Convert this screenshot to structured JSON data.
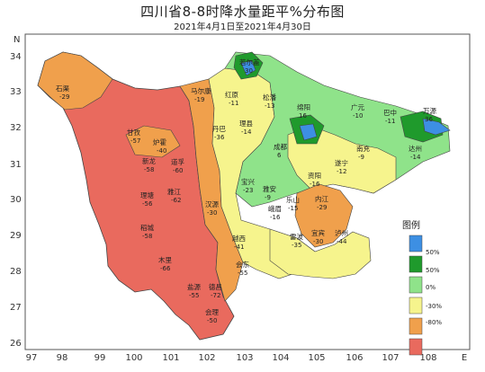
{
  "title": "四川省8-8时降水量距平%分布图",
  "subtitle": "2021年4月1日至2021年4月30日",
  "axes": {
    "x_ticks": [
      "97",
      "98",
      "99",
      "100",
      "101",
      "102",
      "103",
      "104",
      "105",
      "106",
      "107",
      "108"
    ],
    "y_ticks": [
      "34",
      "33",
      "32",
      "31",
      "30",
      "29",
      "28",
      "27",
      "26"
    ],
    "x_end_label": "E",
    "y_top_label": "N"
  },
  "legend": {
    "title": "图例",
    "items": [
      {
        "label": "50%",
        "color": "#3d8fe3"
      },
      {
        "label": "50%",
        "color": "#1f9a2c"
      },
      {
        "label": "0%",
        "color": "#8fe38a"
      },
      {
        "label": "-30%",
        "color": "#f6f48d"
      },
      {
        "label": "-80%",
        "color": "#f0a04c"
      },
      {
        "label": "",
        "color": "#e96a5e"
      }
    ]
  },
  "stations": [
    {
      "name": "石渠",
      "value": "-29"
    },
    {
      "name": "甘孜",
      "value": "-57"
    },
    {
      "name": "炉霍",
      "value": "-40"
    },
    {
      "name": "新龙",
      "value": "-58"
    },
    {
      "name": "道孚",
      "value": "-60"
    },
    {
      "name": "理塘",
      "value": "-56"
    },
    {
      "name": "雅江",
      "value": "-62"
    },
    {
      "name": "稻城",
      "value": "-58"
    },
    {
      "name": "木里",
      "value": "-66"
    },
    {
      "name": "盐源",
      "value": "-55"
    },
    {
      "name": "德昌",
      "value": "-72"
    },
    {
      "name": "会理",
      "value": "-50"
    },
    {
      "name": "会东",
      "value": "-55"
    },
    {
      "name": "越西",
      "value": "-41"
    },
    {
      "name": "雷波",
      "value": "-35"
    },
    {
      "name": "汉源",
      "value": "-30"
    },
    {
      "name": "红原",
      "value": "-11"
    },
    {
      "name": "若尔盖",
      "value": "30"
    },
    {
      "name": "松潘",
      "value": "-13"
    },
    {
      "name": "马尔康",
      "value": "-19"
    },
    {
      "name": "理县",
      "value": "-14"
    },
    {
      "name": "丹巴",
      "value": "-36"
    },
    {
      "name": "宝兴",
      "value": "-23"
    },
    {
      "name": "雅安",
      "value": "-9"
    },
    {
      "name": "峨眉",
      "value": "-16"
    },
    {
      "name": "乐山",
      "value": "-15"
    },
    {
      "name": "宜宾",
      "value": "-30"
    },
    {
      "name": "泸州",
      "value": "-44"
    },
    {
      "name": "内江",
      "value": "-29"
    },
    {
      "name": "成都",
      "value": "6"
    },
    {
      "name": "绵阳",
      "value": "16"
    },
    {
      "name": "广元",
      "value": "-10"
    },
    {
      "name": "巴中",
      "value": "-11"
    },
    {
      "name": "达州",
      "value": "-14"
    },
    {
      "name": "南充",
      "value": "-9"
    },
    {
      "name": "遂宁",
      "value": "-12"
    },
    {
      "name": "资阳",
      "value": "-16"
    },
    {
      "name": "万源",
      "value": "36"
    }
  ]
}
